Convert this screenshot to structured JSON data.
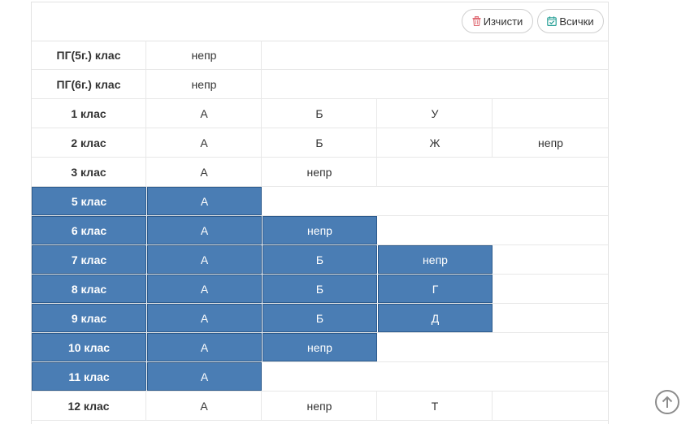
{
  "toolbar": {
    "clear_label": "Изчисти",
    "all_label": "Всички",
    "clear_icon": "trash-icon",
    "all_icon": "calendar-check-icon"
  },
  "colors": {
    "selected_bg": "#4a7db4",
    "selected_border": "#2c5a8c",
    "clear_icon": "#e06c75",
    "all_icon": "#2aa198"
  },
  "rows": [
    {
      "label": "ПГ(5г.) клас",
      "selected": false,
      "divisions": [
        "непр"
      ]
    },
    {
      "label": "ПГ(6г.) клас",
      "selected": false,
      "divisions": [
        "непр"
      ]
    },
    {
      "label": "1 клас",
      "selected": false,
      "divisions": [
        "А",
        "Б",
        "У"
      ]
    },
    {
      "label": "2 клас",
      "selected": false,
      "divisions": [
        "А",
        "Б",
        "Ж",
        "непр"
      ]
    },
    {
      "label": "3 клас",
      "selected": false,
      "divisions": [
        "А",
        "непр"
      ]
    },
    {
      "label": "5 клас",
      "selected": true,
      "divisions": [
        "А"
      ]
    },
    {
      "label": "6 клас",
      "selected": true,
      "divisions": [
        "А",
        "непр"
      ]
    },
    {
      "label": "7 клас",
      "selected": true,
      "divisions": [
        "А",
        "Б",
        "непр"
      ]
    },
    {
      "label": "8 клас",
      "selected": true,
      "divisions": [
        "А",
        "Б",
        "Г"
      ]
    },
    {
      "label": "9 клас",
      "selected": true,
      "divisions": [
        "А",
        "Б",
        "Д"
      ]
    },
    {
      "label": "10 клас",
      "selected": true,
      "divisions": [
        "А",
        "непр"
      ]
    },
    {
      "label": "11 клас",
      "selected": true,
      "divisions": [
        "А"
      ]
    },
    {
      "label": "12 клас",
      "selected": false,
      "divisions": [
        "А",
        "непр",
        "Т"
      ]
    }
  ],
  "scroll_top_icon": "arrow-up-circle-icon"
}
